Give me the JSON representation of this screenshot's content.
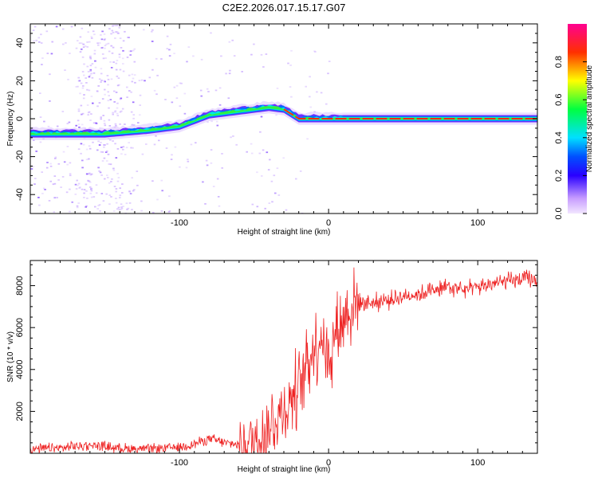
{
  "chart_data": [
    {
      "type": "heatmap",
      "title": "C2E2.2026.017.15.17.G07",
      "xlabel": "Height of straight line (km)",
      "ylabel": "Frequency (Hz)",
      "xlim": [
        -200,
        140
      ],
      "ylim": [
        -50,
        50
      ],
      "x_ticks": [
        -100,
        0,
        100
      ],
      "y_ticks": [
        -40,
        -20,
        0,
        20,
        40
      ],
      "colorbar": {
        "label": "Normalized spectral amplitude",
        "range": [
          0,
          1
        ],
        "ticks": [
          0.0,
          0.2,
          0.4,
          0.6,
          0.8
        ],
        "tick_labels": [
          "0.0",
          "0.2",
          "0.4",
          "0.6",
          "0.8"
        ],
        "colormap": [
          "#ff00ff",
          "#ff0000",
          "#ffff00",
          "#00ff00",
          "#00ffff",
          "#0000ff",
          "#e0c8ff"
        ]
      },
      "ridge_frequency": {
        "x": [
          -200,
          -150,
          -120,
          -100,
          -80,
          -60,
          -40,
          -30,
          -20,
          -10,
          0,
          10,
          50,
          100,
          140
        ],
        "y": [
          -8,
          -8,
          -6,
          -4,
          2,
          4,
          6,
          5,
          0,
          0,
          0,
          0,
          0,
          0,
          0
        ]
      }
    },
    {
      "type": "line",
      "xlabel": "Height of straight line (km)",
      "ylabel": "SNR (10 * v/v)",
      "xlim": [
        -200,
        140
      ],
      "ylim": [
        0,
        9200
      ],
      "x_ticks": [
        -100,
        0,
        100
      ],
      "y_ticks": [
        2000,
        4000,
        6000,
        8000
      ],
      "color": "#ee2222",
      "series": [
        {
          "name": "SNR",
          "x": [
            -200,
            -180,
            -160,
            -140,
            -120,
            -100,
            -90,
            -80,
            -70,
            -60,
            -50,
            -40,
            -30,
            -20,
            -15,
            -10,
            -5,
            0,
            5,
            10,
            15,
            20,
            30,
            40,
            50,
            60,
            70,
            80,
            90,
            100,
            110,
            120,
            130,
            140
          ],
          "values": [
            200,
            250,
            400,
            250,
            200,
            300,
            450,
            700,
            500,
            400,
            600,
            1200,
            2000,
            3200,
            4200,
            5000,
            5600,
            4500,
            5800,
            6500,
            6900,
            7200,
            7200,
            7300,
            7500,
            7600,
            7800,
            7900,
            7800,
            7900,
            8100,
            8200,
            8300,
            8300
          ]
        }
      ]
    }
  ]
}
